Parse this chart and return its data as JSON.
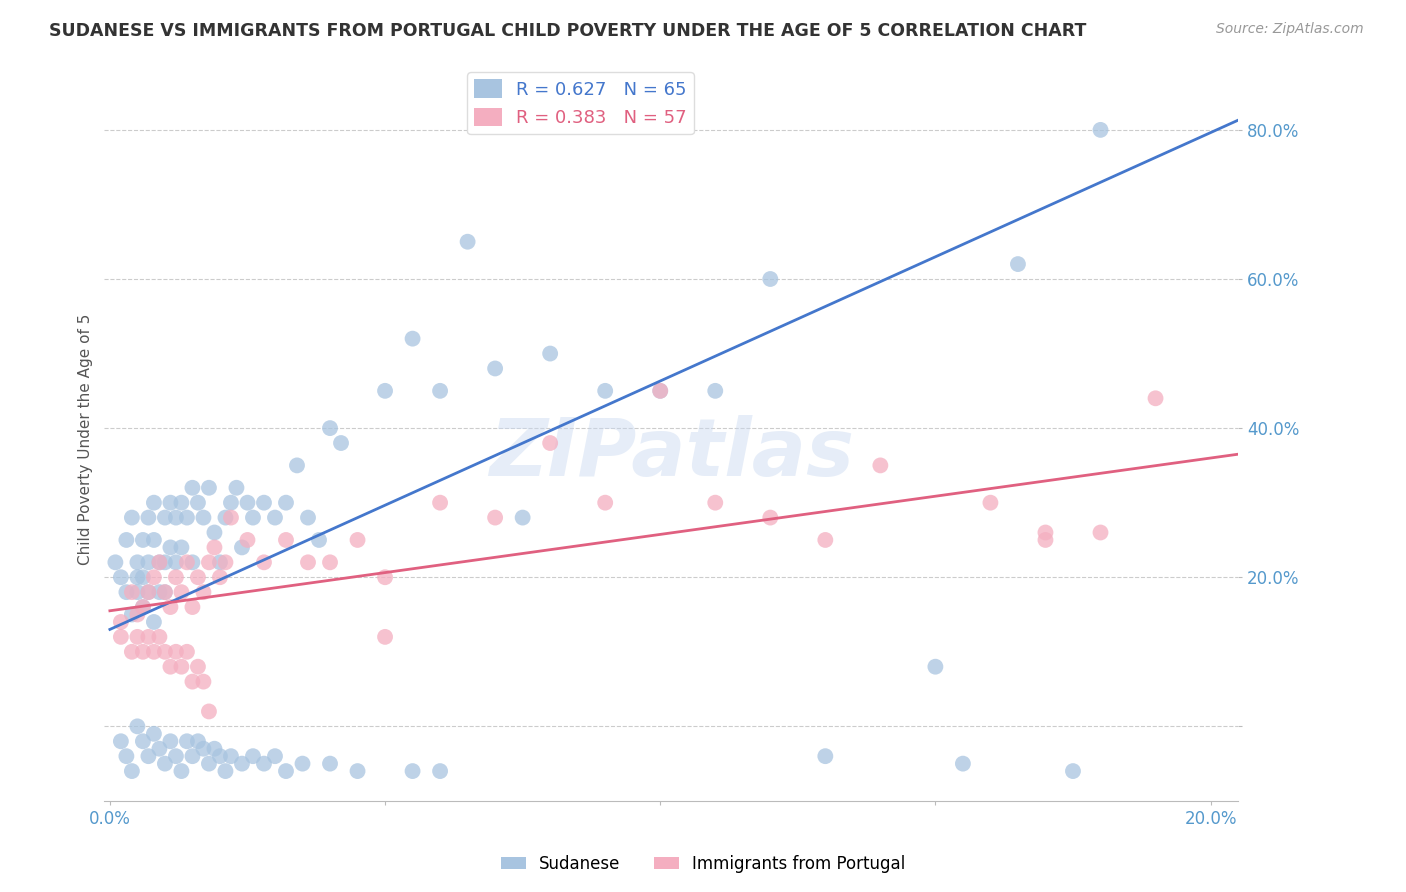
{
  "title": "SUDANESE VS IMMIGRANTS FROM PORTUGAL CHILD POVERTY UNDER THE AGE OF 5 CORRELATION CHART",
  "source": "Source: ZipAtlas.com",
  "ylabel": "Child Poverty Under the Age of 5",
  "xlim": [
    -0.001,
    0.205
  ],
  "ylim": [
    -0.1,
    0.87
  ],
  "yticks": [
    0.0,
    0.2,
    0.4,
    0.6,
    0.8
  ],
  "ytick_labels": [
    "",
    "20.0%",
    "40.0%",
    "60.0%",
    "80.0%"
  ],
  "xticks": [
    0.0,
    0.05,
    0.1,
    0.15,
    0.2
  ],
  "xtick_labels": [
    "0.0%",
    "",
    "",
    "",
    "20.0%"
  ],
  "blue_R": 0.627,
  "blue_N": 65,
  "pink_R": 0.383,
  "pink_N": 57,
  "blue_color": "#a8c4e0",
  "pink_color": "#f4aec0",
  "blue_line_color": "#4477cc",
  "pink_line_color": "#e06080",
  "legend_blue_label": "Sudanese",
  "legend_pink_label": "Immigrants from Portugal",
  "watermark": "ZIPatlas",
  "background_color": "#ffffff",
  "grid_color": "#cccccc",
  "title_color": "#333333",
  "axis_label_color": "#555555",
  "tick_label_color": "#5599cc",
  "blue_line_x0": 0.0,
  "blue_line_x1": 0.205,
  "blue_line_y0": 0.13,
  "blue_line_y1": 0.813,
  "pink_line_x0": 0.0,
  "pink_line_x1": 0.205,
  "pink_line_y0": 0.155,
  "pink_line_y1": 0.365,
  "blue_scatter_x": [
    0.001,
    0.002,
    0.003,
    0.003,
    0.004,
    0.004,
    0.005,
    0.005,
    0.005,
    0.006,
    0.006,
    0.006,
    0.007,
    0.007,
    0.007,
    0.008,
    0.008,
    0.008,
    0.009,
    0.009,
    0.01,
    0.01,
    0.01,
    0.011,
    0.011,
    0.012,
    0.012,
    0.013,
    0.013,
    0.014,
    0.015,
    0.015,
    0.016,
    0.017,
    0.018,
    0.019,
    0.02,
    0.021,
    0.022,
    0.023,
    0.024,
    0.025,
    0.026,
    0.028,
    0.03,
    0.032,
    0.034,
    0.036,
    0.038,
    0.04,
    0.042,
    0.05,
    0.055,
    0.06,
    0.065,
    0.07,
    0.075,
    0.08,
    0.09,
    0.1,
    0.11,
    0.12,
    0.15,
    0.165,
    0.18
  ],
  "blue_scatter_y": [
    0.22,
    0.2,
    0.25,
    0.18,
    0.28,
    0.15,
    0.22,
    0.18,
    0.2,
    0.25,
    0.2,
    0.16,
    0.28,
    0.22,
    0.18,
    0.3,
    0.25,
    0.14,
    0.22,
    0.18,
    0.28,
    0.22,
    0.18,
    0.3,
    0.24,
    0.28,
    0.22,
    0.3,
    0.24,
    0.28,
    0.32,
    0.22,
    0.3,
    0.28,
    0.32,
    0.26,
    0.22,
    0.28,
    0.3,
    0.32,
    0.24,
    0.3,
    0.28,
    0.3,
    0.28,
    0.3,
    0.35,
    0.28,
    0.25,
    0.4,
    0.38,
    0.45,
    0.52,
    0.45,
    0.65,
    0.48,
    0.28,
    0.5,
    0.45,
    0.45,
    0.45,
    0.6,
    0.08,
    0.62,
    0.8
  ],
  "blue_scatter_x2": [
    0.002,
    0.003,
    0.004,
    0.005,
    0.006,
    0.007,
    0.008,
    0.009,
    0.01,
    0.011,
    0.012,
    0.013,
    0.014,
    0.015,
    0.016,
    0.017,
    0.018,
    0.019,
    0.02,
    0.021,
    0.022,
    0.024,
    0.026,
    0.028,
    0.03,
    0.032,
    0.035,
    0.04,
    0.045,
    0.055,
    0.06,
    0.13,
    0.155,
    0.175
  ],
  "blue_scatter_y2": [
    -0.02,
    -0.04,
    -0.06,
    0.0,
    -0.02,
    -0.04,
    -0.01,
    -0.03,
    -0.05,
    -0.02,
    -0.04,
    -0.06,
    -0.02,
    -0.04,
    -0.02,
    -0.03,
    -0.05,
    -0.03,
    -0.04,
    -0.06,
    -0.04,
    -0.05,
    -0.04,
    -0.05,
    -0.04,
    -0.06,
    -0.05,
    -0.05,
    -0.06,
    -0.06,
    -0.06,
    -0.04,
    -0.05,
    -0.06
  ],
  "pink_scatter_x": [
    0.002,
    0.004,
    0.005,
    0.006,
    0.007,
    0.008,
    0.009,
    0.01,
    0.011,
    0.012,
    0.013,
    0.014,
    0.015,
    0.016,
    0.017,
    0.018,
    0.019,
    0.02,
    0.021,
    0.022,
    0.025,
    0.028,
    0.032,
    0.036,
    0.04,
    0.045,
    0.05,
    0.06,
    0.07,
    0.08,
    0.09,
    0.1,
    0.11,
    0.12,
    0.13,
    0.14,
    0.16,
    0.17,
    0.18,
    0.19
  ],
  "pink_scatter_y": [
    0.14,
    0.18,
    0.15,
    0.16,
    0.18,
    0.2,
    0.22,
    0.18,
    0.16,
    0.2,
    0.18,
    0.22,
    0.16,
    0.2,
    0.18,
    0.22,
    0.24,
    0.2,
    0.22,
    0.28,
    0.25,
    0.22,
    0.25,
    0.22,
    0.22,
    0.25,
    0.2,
    0.3,
    0.28,
    0.38,
    0.3,
    0.45,
    0.3,
    0.28,
    0.25,
    0.35,
    0.3,
    0.25,
    0.26,
    0.44
  ],
  "pink_scatter_x2": [
    0.002,
    0.004,
    0.005,
    0.006,
    0.007,
    0.008,
    0.009,
    0.01,
    0.011,
    0.012,
    0.013,
    0.014,
    0.015,
    0.016,
    0.017,
    0.018,
    0.05,
    0.17
  ],
  "pink_scatter_y2": [
    0.12,
    0.1,
    0.12,
    0.1,
    0.12,
    0.1,
    0.12,
    0.1,
    0.08,
    0.1,
    0.08,
    0.1,
    0.06,
    0.08,
    0.06,
    0.02,
    0.12,
    0.26
  ]
}
